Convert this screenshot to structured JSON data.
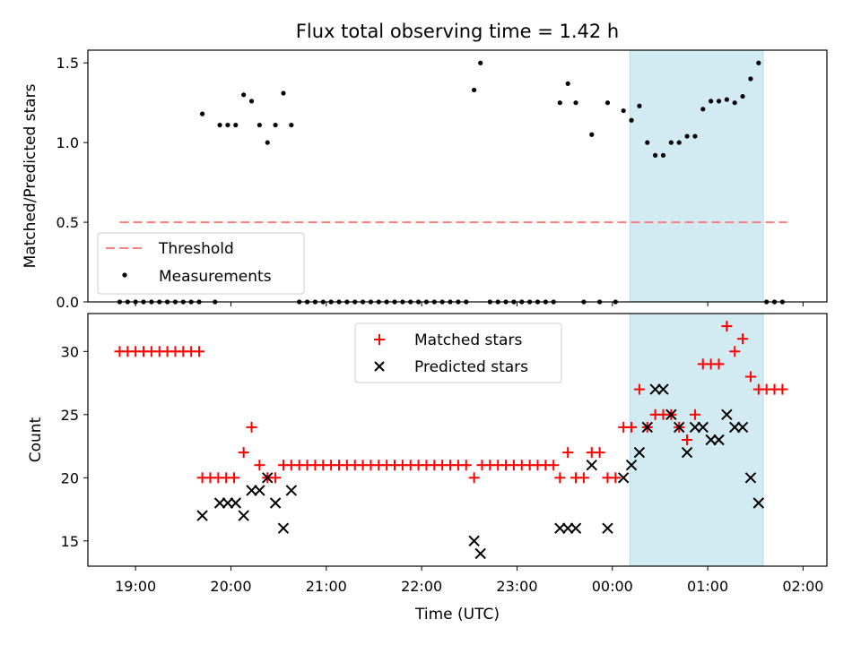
{
  "figure": {
    "title": "Flux total observing time = 1.42 h"
  },
  "chart_data": [
    {
      "type": "scatter",
      "ylabel": "Matched/Predicted stars",
      "xlabel": "",
      "ylim": [
        0,
        1.58
      ],
      "yticks": [
        "0.0",
        "0.5",
        "1.0",
        "1.5"
      ],
      "grid": false,
      "legend": {
        "placement": "lower-left",
        "entries": [
          "Threshold",
          "Measurements"
        ]
      },
      "threshold": {
        "name": "Threshold",
        "value": 0.5,
        "x_start": "18:50",
        "x_end": "01:50",
        "color": "#ff7f7f",
        "style": "dashed"
      },
      "shaded_interval": {
        "start": "00:11",
        "end": "01:35",
        "color": "#add8e6"
      },
      "series": [
        {
          "name": "Measurements",
          "color": "#000000",
          "marker": "dot",
          "points": [
            [
              "18:50",
              0
            ],
            [
              "18:55",
              0
            ],
            [
              "19:00",
              0
            ],
            [
              "19:05",
              0
            ],
            [
              "19:10",
              0
            ],
            [
              "19:15",
              0
            ],
            [
              "19:20",
              0
            ],
            [
              "19:25",
              0
            ],
            [
              "19:30",
              0
            ],
            [
              "19:35",
              0
            ],
            [
              "19:40",
              0
            ],
            [
              "19:42",
              1.18
            ],
            [
              "19:50",
              0
            ],
            [
              "19:53",
              1.11
            ],
            [
              "19:58",
              1.11
            ],
            [
              "20:03",
              1.11
            ],
            [
              "20:08",
              1.3
            ],
            [
              "20:13",
              1.26
            ],
            [
              "20:18",
              1.11
            ],
            [
              "20:23",
              1.0
            ],
            [
              "20:28",
              1.11
            ],
            [
              "20:33",
              1.31
            ],
            [
              "20:38",
              1.11
            ],
            [
              "20:43",
              0
            ],
            [
              "20:48",
              0
            ],
            [
              "20:53",
              0
            ],
            [
              "20:58",
              0
            ],
            [
              "21:03",
              0
            ],
            [
              "21:08",
              0
            ],
            [
              "21:13",
              0
            ],
            [
              "21:18",
              0
            ],
            [
              "21:23",
              0
            ],
            [
              "21:28",
              0
            ],
            [
              "21:33",
              0
            ],
            [
              "21:38",
              0
            ],
            [
              "21:43",
              0
            ],
            [
              "21:48",
              0
            ],
            [
              "21:53",
              0
            ],
            [
              "21:58",
              0
            ],
            [
              "22:03",
              0
            ],
            [
              "22:08",
              0
            ],
            [
              "22:13",
              0
            ],
            [
              "22:18",
              0
            ],
            [
              "22:23",
              0
            ],
            [
              "22:28",
              0
            ],
            [
              "22:33",
              1.33
            ],
            [
              "22:37",
              1.5
            ],
            [
              "22:43",
              0
            ],
            [
              "22:48",
              0
            ],
            [
              "22:53",
              0
            ],
            [
              "22:58",
              0
            ],
            [
              "23:03",
              0
            ],
            [
              "23:08",
              0
            ],
            [
              "23:13",
              0
            ],
            [
              "23:18",
              0
            ],
            [
              "23:23",
              0
            ],
            [
              "23:27",
              1.25
            ],
            [
              "23:32",
              1.37
            ],
            [
              "23:37",
              1.25
            ],
            [
              "23:42",
              0
            ],
            [
              "23:47",
              1.05
            ],
            [
              "23:52",
              0
            ],
            [
              "23:57",
              1.25
            ],
            [
              "24:02",
              0
            ],
            [
              "24:07",
              1.2
            ],
            [
              "24:12",
              1.14
            ],
            [
              "24:17",
              1.23
            ],
            [
              "24:22",
              1.0
            ],
            [
              "24:27",
              0.92
            ],
            [
              "24:32",
              0.92
            ],
            [
              "24:37",
              1.0
            ],
            [
              "24:42",
              1.0
            ],
            [
              "24:47",
              1.04
            ],
            [
              "24:52",
              1.04
            ],
            [
              "24:57",
              1.21
            ],
            [
              "25:02",
              1.26
            ],
            [
              "25:07",
              1.26
            ],
            [
              "25:12",
              1.27
            ],
            [
              "25:17",
              1.25
            ],
            [
              "25:22",
              1.29
            ],
            [
              "25:27",
              1.4
            ],
            [
              "25:32",
              1.5
            ],
            [
              "25:37",
              0
            ],
            [
              "25:42",
              0
            ],
            [
              "25:47",
              0
            ]
          ]
        }
      ]
    },
    {
      "type": "scatter",
      "ylabel": "Count",
      "xlabel": "Time (UTC)",
      "ylim": [
        13,
        33
      ],
      "yticks": [
        "15",
        "20",
        "25",
        "30"
      ],
      "xticks": [
        "19:00",
        "20:00",
        "21:00",
        "22:00",
        "23:00",
        "00:00",
        "01:00",
        "02:00"
      ],
      "grid": false,
      "legend": {
        "placement": "upper-center",
        "entries": [
          "Matched stars",
          "Predicted stars"
        ]
      },
      "shaded_interval": {
        "start": "00:11",
        "end": "01:35",
        "color": "#add8e6"
      },
      "series": [
        {
          "name": "Matched stars",
          "color": "#ff0000",
          "marker": "plus",
          "points": [
            [
              "18:50",
              30
            ],
            [
              "18:55",
              30
            ],
            [
              "19:00",
              30
            ],
            [
              "19:05",
              30
            ],
            [
              "19:10",
              30
            ],
            [
              "19:15",
              30
            ],
            [
              "19:20",
              30
            ],
            [
              "19:25",
              30
            ],
            [
              "19:30",
              30
            ],
            [
              "19:35",
              30
            ],
            [
              "19:40",
              30
            ],
            [
              "19:42",
              20
            ],
            [
              "19:47",
              20
            ],
            [
              "19:52",
              20
            ],
            [
              "19:57",
              20
            ],
            [
              "20:02",
              20
            ],
            [
              "20:08",
              22
            ],
            [
              "20:13",
              24
            ],
            [
              "20:18",
              21
            ],
            [
              "20:23",
              20
            ],
            [
              "20:28",
              20
            ],
            [
              "20:33",
              21
            ],
            [
              "20:38",
              21
            ],
            [
              "20:43",
              21
            ],
            [
              "20:48",
              21
            ],
            [
              "20:53",
              21
            ],
            [
              "20:58",
              21
            ],
            [
              "21:03",
              21
            ],
            [
              "21:08",
              21
            ],
            [
              "21:13",
              21
            ],
            [
              "21:18",
              21
            ],
            [
              "21:23",
              21
            ],
            [
              "21:28",
              21
            ],
            [
              "21:33",
              21
            ],
            [
              "21:38",
              21
            ],
            [
              "21:43",
              21
            ],
            [
              "21:48",
              21
            ],
            [
              "21:53",
              21
            ],
            [
              "21:58",
              21
            ],
            [
              "22:03",
              21
            ],
            [
              "22:08",
              21
            ],
            [
              "22:13",
              21
            ],
            [
              "22:18",
              21
            ],
            [
              "22:23",
              21
            ],
            [
              "22:28",
              21
            ],
            [
              "22:33",
              20
            ],
            [
              "22:38",
              21
            ],
            [
              "22:43",
              21
            ],
            [
              "22:48",
              21
            ],
            [
              "22:53",
              21
            ],
            [
              "22:58",
              21
            ],
            [
              "23:03",
              21
            ],
            [
              "23:08",
              21
            ],
            [
              "23:13",
              21
            ],
            [
              "23:18",
              21
            ],
            [
              "23:23",
              21
            ],
            [
              "23:27",
              20
            ],
            [
              "23:32",
              22
            ],
            [
              "23:37",
              20
            ],
            [
              "23:42",
              20
            ],
            [
              "23:47",
              22
            ],
            [
              "23:52",
              22
            ],
            [
              "23:57",
              20
            ],
            [
              "24:02",
              20
            ],
            [
              "24:07",
              24
            ],
            [
              "24:12",
              24
            ],
            [
              "24:17",
              27
            ],
            [
              "24:22",
              24
            ],
            [
              "24:27",
              25
            ],
            [
              "24:32",
              25
            ],
            [
              "24:37",
              25
            ],
            [
              "24:42",
              24
            ],
            [
              "24:47",
              23
            ],
            [
              "24:52",
              25
            ],
            [
              "24:57",
              29
            ],
            [
              "25:02",
              29
            ],
            [
              "25:07",
              29
            ],
            [
              "25:12",
              32
            ],
            [
              "25:17",
              30
            ],
            [
              "25:22",
              31
            ],
            [
              "25:27",
              28
            ],
            [
              "25:32",
              27
            ],
            [
              "25:37",
              27
            ],
            [
              "25:42",
              27
            ],
            [
              "25:47",
              27
            ]
          ]
        },
        {
          "name": "Predicted stars",
          "color": "#000000",
          "marker": "x",
          "points": [
            [
              "19:42",
              17
            ],
            [
              "19:53",
              18
            ],
            [
              "19:58",
              18
            ],
            [
              "20:03",
              18
            ],
            [
              "20:08",
              17
            ],
            [
              "20:13",
              19
            ],
            [
              "20:18",
              19
            ],
            [
              "20:23",
              20
            ],
            [
              "20:28",
              18
            ],
            [
              "20:33",
              16
            ],
            [
              "20:38",
              19
            ],
            [
              "22:33",
              15
            ],
            [
              "22:37",
              14
            ],
            [
              "23:27",
              16
            ],
            [
              "23:32",
              16
            ],
            [
              "23:37",
              16
            ],
            [
              "23:47",
              21
            ],
            [
              "23:57",
              16
            ],
            [
              "24:07",
              20
            ],
            [
              "24:12",
              21
            ],
            [
              "24:17",
              22
            ],
            [
              "24:22",
              24
            ],
            [
              "24:27",
              27
            ],
            [
              "24:32",
              27
            ],
            [
              "24:37",
              25
            ],
            [
              "24:42",
              24
            ],
            [
              "24:47",
              22
            ],
            [
              "24:52",
              24
            ],
            [
              "24:57",
              24
            ],
            [
              "25:02",
              23
            ],
            [
              "25:07",
              23
            ],
            [
              "25:12",
              25
            ],
            [
              "25:17",
              24
            ],
            [
              "25:22",
              24
            ],
            [
              "25:27",
              20
            ],
            [
              "25:32",
              18
            ]
          ]
        }
      ]
    }
  ]
}
